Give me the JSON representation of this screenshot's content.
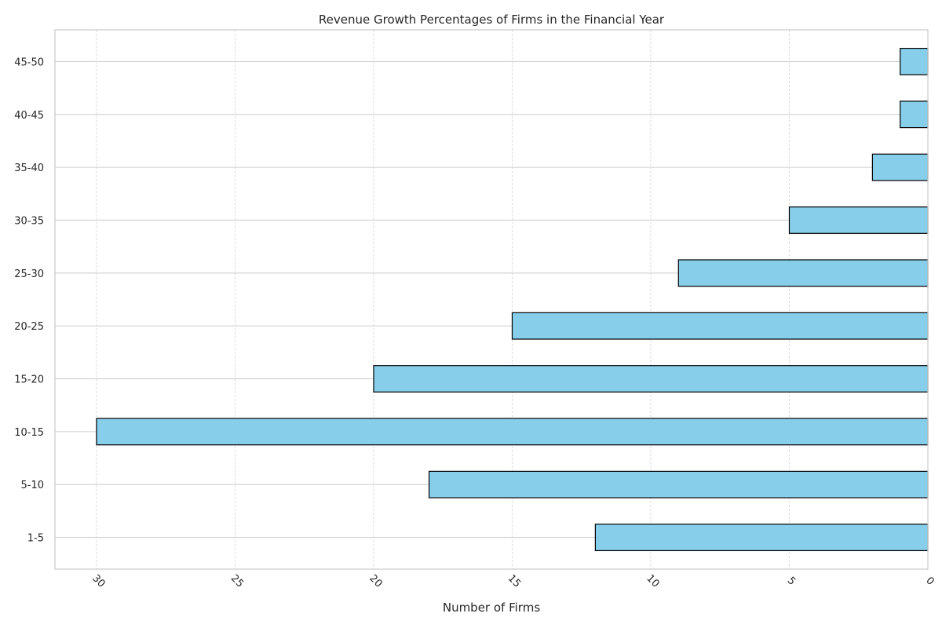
{
  "chart_data": {
    "type": "bar",
    "orientation": "horizontal",
    "x_axis_inverted": true,
    "title": "Revenue Growth Percentages of Firms in the Financial Year",
    "xlabel": "Number of Firms",
    "ylabel": "",
    "categories": [
      "1-5",
      "5-10",
      "10-15",
      "15-20",
      "20-25",
      "25-30",
      "30-35",
      "35-40",
      "40-45",
      "45-50"
    ],
    "values": [
      12,
      18,
      30,
      20,
      15,
      9,
      5,
      2,
      1,
      1
    ],
    "xlim": [
      31.5,
      0
    ],
    "xticks": [
      30,
      25,
      20,
      15,
      10,
      5,
      0
    ],
    "grid": true,
    "colors": {
      "bar_fill": "#87ceeb",
      "bar_edge": "#000000",
      "grid_major": "#d0d0d0",
      "grid_minor": "#d3d3d3",
      "frame": "#cccccc"
    }
  }
}
